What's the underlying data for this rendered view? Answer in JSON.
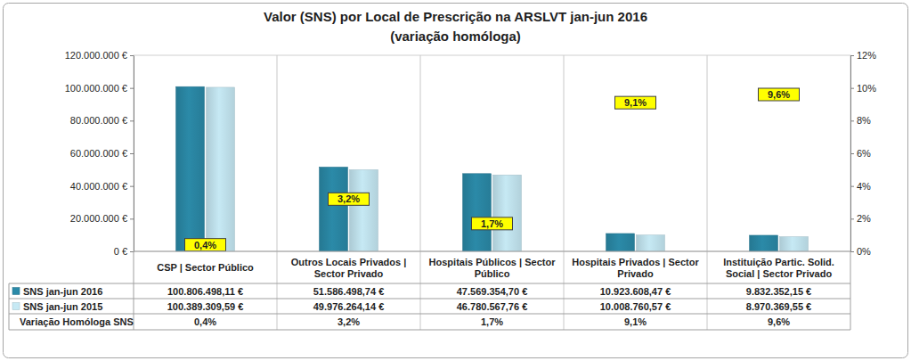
{
  "chart_data": {
    "type": "bar",
    "title": "Valor (SNS) por Local de Prescrição na ARSLVT jan-jun 2016",
    "subtitle": "(variação homóloga)",
    "categories": [
      "CSP | Sector Público",
      "Outros Locais Privados | Sector Privado",
      "Hospitais Públicos | Sector Público",
      "Hospitais Privados | Sector Privado",
      "Instituição Partic. Solid. Social | Sector Privado"
    ],
    "series": [
      {
        "name": "SNS jan-jun 2016",
        "color": "#2b8aa8",
        "values": [
          100806498.11,
          51586498.74,
          47569354.7,
          10923608.47,
          9832352.15
        ],
        "value_labels": [
          "100.806.498,11 €",
          "51.586.498,74 €",
          "47.569.354,70 €",
          "10.923.608,47 €",
          "9.832.352,15 €"
        ]
      },
      {
        "name": "SNS jan-jun 2015",
        "color": "#c6e9f4",
        "values": [
          100389309.59,
          49976264.14,
          46780567.76,
          10008760.57,
          8970369.55
        ],
        "value_labels": [
          "100.389.309,59 €",
          "49.976.264,14 €",
          "46.780.567,76 €",
          "10.008.760,57 €",
          "8.970.369,55 €"
        ]
      },
      {
        "name": "Variação Homóloga SNS",
        "type": "text",
        "axis": "y2",
        "color": "#ffff00",
        "values": [
          0.4,
          3.2,
          1.7,
          9.1,
          9.6
        ],
        "value_labels": [
          "0,4%",
          "3,2%",
          "1,7%",
          "9,1%",
          "9,6%"
        ]
      }
    ],
    "ylim": [
      0,
      120000000
    ],
    "yticks": [
      {
        "value": 0,
        "label": "0 €"
      },
      {
        "value": 20000000,
        "label": "20.000.000 €"
      },
      {
        "value": 40000000,
        "label": "40.000.000 €"
      },
      {
        "value": 60000000,
        "label": "60.000.000 €"
      },
      {
        "value": 80000000,
        "label": "80.000.000 €"
      },
      {
        "value": 100000000,
        "label": "100.000.000 €"
      },
      {
        "value": 120000000,
        "label": "120.000.000 €"
      }
    ],
    "y2lim": [
      0,
      12
    ],
    "y2ticks": [
      {
        "value": 0,
        "label": "0%"
      },
      {
        "value": 2,
        "label": "2%"
      },
      {
        "value": 4,
        "label": "4%"
      },
      {
        "value": 6,
        "label": "6%"
      },
      {
        "value": 8,
        "label": "8%"
      },
      {
        "value": 10,
        "label": "10%"
      },
      {
        "value": 12,
        "label": "12%"
      }
    ],
    "grid": false
  }
}
